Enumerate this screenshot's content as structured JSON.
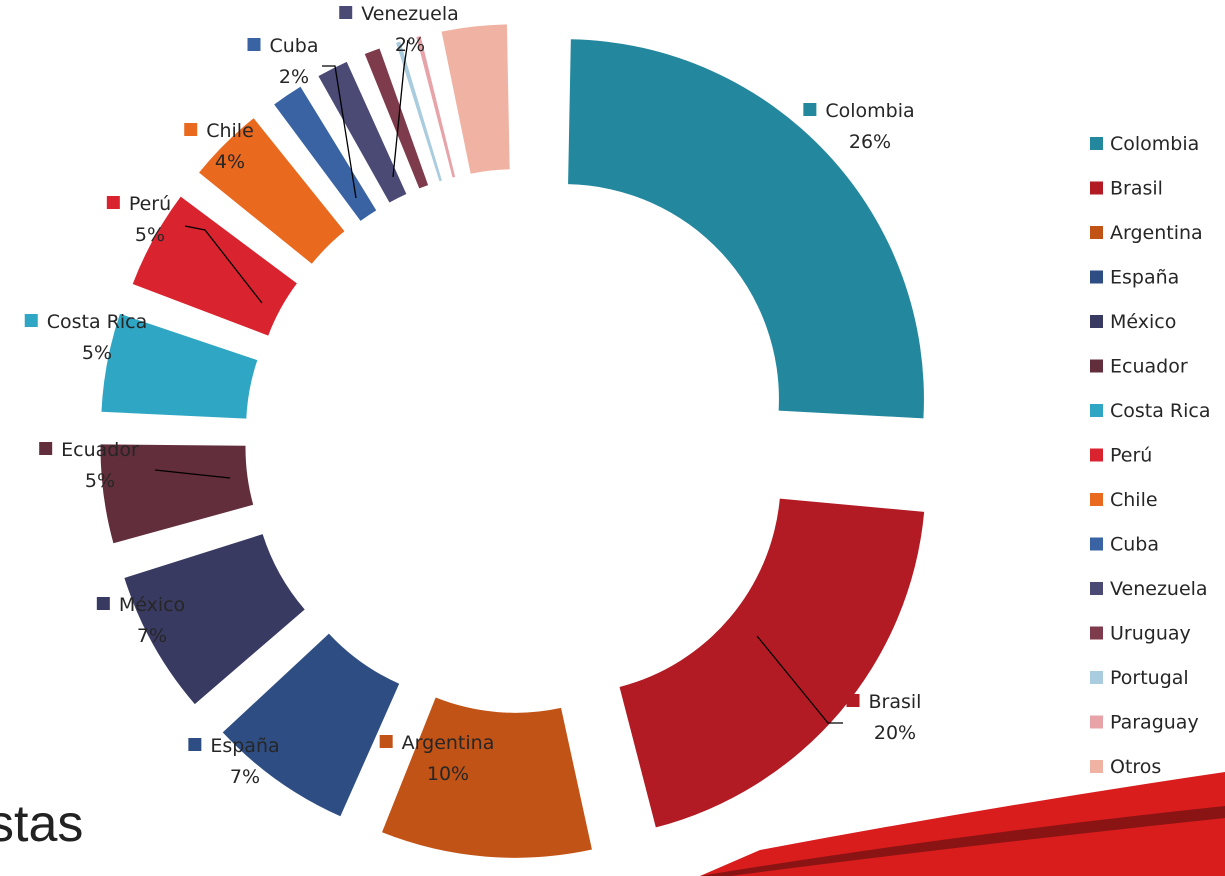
{
  "chart_data": {
    "type": "pie",
    "variant": "exploded-donut",
    "title": "",
    "categories": [
      "Colombia",
      "Brasil",
      "Argentina",
      "España",
      "México",
      "Ecuador",
      "Costa Rica",
      "Perú",
      "Chile",
      "Cuba",
      "Venezuela",
      "Uruguay",
      "Portugal",
      "Paraguay",
      "Otros"
    ],
    "values": [
      26,
      20,
      10,
      7,
      7,
      5,
      5,
      5,
      4,
      2,
      2,
      1.3,
      0.8,
      0.8,
      3.5
    ],
    "labels": [
      "26%",
      "20%",
      "10%",
      "7%",
      "7%",
      "5%",
      "5%",
      "5%",
      "4%",
      "2%",
      "2%",
      "",
      "",
      "",
      ""
    ],
    "colors": [
      "#23879E",
      "#B21B24",
      "#C25316",
      "#2E4E83",
      "#393A61",
      "#632E3C",
      "#2FA6C3",
      "#D92430",
      "#E9691F",
      "#3963A3",
      "#4A4A75",
      "#7D3B4B",
      "#A9CCDE",
      "#E7A3A8",
      "#F0B2A2"
    ],
    "legend": "right"
  },
  "footer": {
    "text": "stas"
  }
}
